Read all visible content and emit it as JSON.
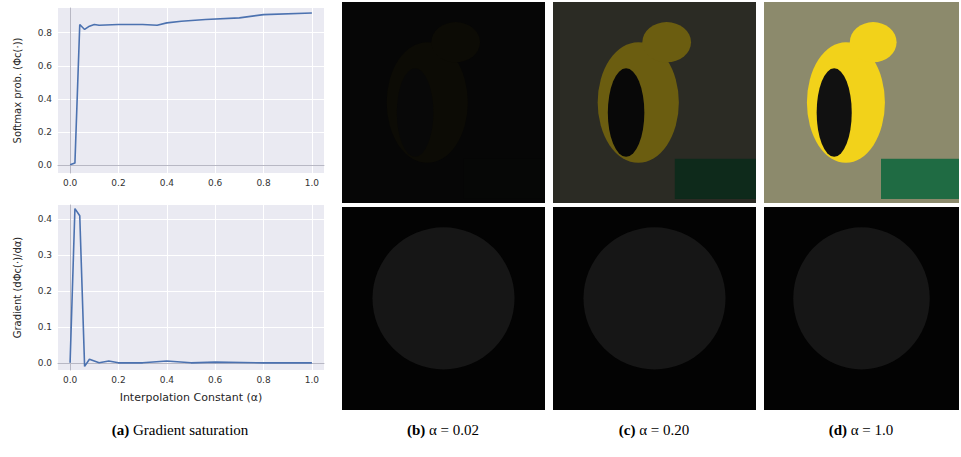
{
  "chart_data": [
    {
      "type": "line",
      "y_label": "Softmax prob. (Φc(·))",
      "color": "#4c72b0",
      "x": [
        0,
        0.02,
        0.04,
        0.06,
        0.08,
        0.1,
        0.12,
        0.2,
        0.3,
        0.36,
        0.4,
        0.46,
        0.56,
        0.7,
        0.8,
        1.0
      ],
      "values": [
        0.0,
        0.01,
        0.85,
        0.82,
        0.84,
        0.85,
        0.845,
        0.85,
        0.85,
        0.845,
        0.86,
        0.87,
        0.88,
        0.89,
        0.91,
        0.92
      ],
      "xlim": [
        -0.05,
        1.05
      ],
      "xticks": [
        {
          "value": 0,
          "label": "0.0"
        },
        {
          "value": 0.2,
          "label": "0.2"
        },
        {
          "value": 0.4,
          "label": "0.4"
        },
        {
          "value": 0.6,
          "label": "0.6"
        },
        {
          "value": 0.8,
          "label": "0.8"
        },
        {
          "value": 1.0,
          "label": "1.0"
        }
      ],
      "ylim": [
        -0.05,
        0.95
      ],
      "yticks": [
        {
          "value": 0,
          "label": "0.0"
        },
        {
          "value": 0.2,
          "label": "0.2"
        },
        {
          "value": 0.4,
          "label": "0.4"
        },
        {
          "value": 0.6,
          "label": "0.6"
        },
        {
          "value": 0.8,
          "label": "0.8"
        }
      ],
      "grid": true
    },
    {
      "type": "line",
      "x_label": "Interpolation Constant (α)",
      "y_label": "Gradient (dΦc(·)/dα)",
      "color": "#4c72b0",
      "x": [
        0,
        0.02,
        0.04,
        0.06,
        0.08,
        0.1,
        0.12,
        0.16,
        0.2,
        0.3,
        0.4,
        0.5,
        0.6,
        0.8,
        1.0
      ],
      "values": [
        0.0,
        0.43,
        0.41,
        -0.01,
        0.01,
        0.005,
        0.0,
        0.005,
        0.0,
        0.0,
        0.005,
        0.0,
        0.002,
        0.0,
        0.0
      ],
      "xlim": [
        -0.05,
        1.05
      ],
      "xticks": [
        {
          "value": 0,
          "label": "0.0"
        },
        {
          "value": 0.2,
          "label": "0.2"
        },
        {
          "value": 0.4,
          "label": "0.4"
        },
        {
          "value": 0.6,
          "label": "0.6"
        },
        {
          "value": 0.8,
          "label": "0.8"
        },
        {
          "value": 1.0,
          "label": "1.0"
        }
      ],
      "ylim": [
        -0.02,
        0.44
      ],
      "yticks": [
        {
          "value": 0,
          "label": "0.0"
        },
        {
          "value": 0.1,
          "label": "0.1"
        },
        {
          "value": 0.2,
          "label": "0.2"
        },
        {
          "value": 0.3,
          "label": "0.3"
        },
        {
          "value": 0.4,
          "label": "0.4"
        }
      ],
      "grid": true
    }
  ],
  "panels": [
    {
      "caption": "(a) Gradient saturation"
    },
    {
      "caption": "(b) α = 0.02"
    },
    {
      "caption": "(c) α = 0.20"
    },
    {
      "caption": "(d) α = 1.0"
    }
  ]
}
